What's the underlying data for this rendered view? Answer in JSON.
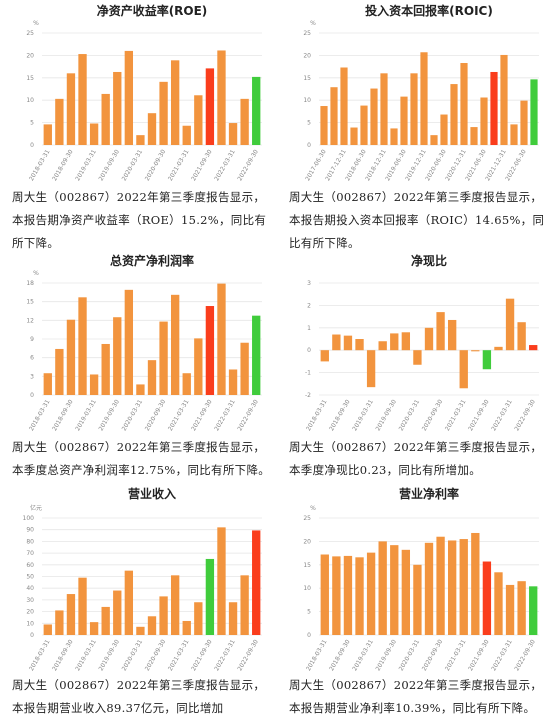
{
  "chart_data": [
    {
      "type": "bar",
      "title": "净资产收益率(ROE)",
      "unit": "%",
      "categories": [
        "2018-03-31",
        null,
        "2018-09-30",
        null,
        "2019-03-31",
        null,
        "2019-09-30",
        null,
        "2020-03-31",
        null,
        "2020-09-30",
        null,
        "2021-03-31",
        null,
        "2021-09-30",
        null,
        "2022-03-31",
        null,
        "2022-09-30"
      ],
      "values": [
        4.6,
        10.3,
        16,
        20.3,
        4.8,
        11.4,
        16.3,
        21,
        2.2,
        7.1,
        14.1,
        18.9,
        4.3,
        11.1,
        17.1,
        21.1,
        4.9,
        10.3,
        15.2
      ],
      "colors": [
        "#f2943e",
        "#f2943e",
        "#f2943e",
        "#f2943e",
        "#f2943e",
        "#f2943e",
        "#f2943e",
        "#f2943e",
        "#f2943e",
        "#f2943e",
        "#f2943e",
        "#f2943e",
        "#f2943e",
        "#f2943e",
        "#fa3d1c",
        "#f2943e",
        "#f2943e",
        "#f2943e",
        "#40cc3c"
      ],
      "ylim": [
        0,
        25
      ],
      "yticks": [
        0,
        5,
        10,
        15,
        20,
        25
      ],
      "grid": true,
      "caption": "周大生（002867）2022年第三季度报告显示，本报告期净资产收益率（ROE）15.2%，同比有所下降。"
    },
    {
      "type": "bar",
      "title": "投入资本回报率(ROIC)",
      "unit": "%",
      "categories": [
        "2017-06-30",
        null,
        "2017-12-31",
        null,
        "2018-06-30",
        null,
        "2018-12-31",
        null,
        "2019-06-30",
        null,
        "2019-12-31",
        null,
        "2020-06-30",
        null,
        "2020-12-31",
        null,
        "2021-06-30",
        null,
        "2021-12-31",
        null,
        "2022-06-30",
        null
      ],
      "values": [
        8.7,
        12.9,
        17.3,
        3.9,
        8.8,
        12.6,
        16,
        3.7,
        10.8,
        16,
        20.7,
        2.2,
        6.8,
        13.6,
        18.3,
        4,
        10.6,
        16.3,
        20.1,
        4.6,
        9.9,
        14.65
      ],
      "colors": [
        "#f2943e",
        "#f2943e",
        "#f2943e",
        "#f2943e",
        "#f2943e",
        "#f2943e",
        "#f2943e",
        "#f2943e",
        "#f2943e",
        "#f2943e",
        "#f2943e",
        "#f2943e",
        "#f2943e",
        "#f2943e",
        "#f2943e",
        "#f2943e",
        "#f2943e",
        "#fa3d1c",
        "#f2943e",
        "#f2943e",
        "#f2943e",
        "#40cc3c"
      ],
      "ylim": [
        0,
        25
      ],
      "yticks": [
        0,
        5,
        10,
        15,
        20,
        25
      ],
      "grid": true,
      "caption": "周大生（002867）2022年第三季度报告显示，本报告期投入资本回报率（ROIC）14.65%，同比有所下降。"
    },
    {
      "type": "bar",
      "title": "总资产净利润率",
      "unit": "%",
      "categories": [
        "2018-03-31",
        null,
        "2018-09-30",
        null,
        "2019-03-31",
        null,
        "2019-09-30",
        null,
        "2020-03-31",
        null,
        "2020-09-30",
        null,
        "2021-03-31",
        null,
        "2021-09-30",
        null,
        "2022-03-31",
        null,
        "2022-09-30"
      ],
      "values": [
        3.5,
        7.4,
        12.1,
        15.7,
        3.3,
        8.2,
        12.5,
        16.9,
        1.7,
        5.6,
        11.8,
        16.1,
        3.5,
        9.1,
        14.3,
        17.9,
        4.1,
        8.4,
        12.75
      ],
      "colors": [
        "#f2943e",
        "#f2943e",
        "#f2943e",
        "#f2943e",
        "#f2943e",
        "#f2943e",
        "#f2943e",
        "#f2943e",
        "#f2943e",
        "#f2943e",
        "#f2943e",
        "#f2943e",
        "#f2943e",
        "#f2943e",
        "#fa3d1c",
        "#f2943e",
        "#f2943e",
        "#f2943e",
        "#40cc3c"
      ],
      "ylim": [
        0,
        18
      ],
      "yticks": [
        0,
        3,
        6,
        9,
        12,
        15,
        18
      ],
      "grid": true,
      "caption": "周大生（002867）2022年第三季度报告显示，本季度总资产净利润率12.75%，同比有所下降。"
    },
    {
      "type": "bar",
      "title": "净现比",
      "categories": [
        "2018-03-31",
        null,
        "2018-09-30",
        null,
        "2019-03-31",
        null,
        "2019-09-30",
        null,
        "2020-03-31",
        null,
        "2020-09-30",
        null,
        "2021-03-31",
        null,
        "2021-09-30",
        null,
        "2022-03-31",
        null,
        "2022-09-30"
      ],
      "values": [
        -0.5,
        0.7,
        0.65,
        0.5,
        -1.65,
        0.4,
        0.75,
        0.8,
        -0.65,
        1.0,
        1.7,
        1.35,
        -1.7,
        -0.05,
        -0.85,
        0.15,
        2.3,
        1.25,
        0.23
      ],
      "colors": [
        "#f2943e",
        "#f2943e",
        "#f2943e",
        "#f2943e",
        "#f2943e",
        "#f2943e",
        "#f2943e",
        "#f2943e",
        "#f2943e",
        "#f2943e",
        "#f2943e",
        "#f2943e",
        "#f2943e",
        "#f2943e",
        "#40cc3c",
        "#f2943e",
        "#f2943e",
        "#f2943e",
        "#fa3d1c"
      ],
      "ylim": [
        -2,
        3
      ],
      "yticks": [
        -2,
        -1,
        0,
        1,
        2,
        3
      ],
      "grid": true,
      "caption": "周大生（002867）2022年第三季度报告显示，本季度净现比0.23，同比有所增加。"
    },
    {
      "type": "bar",
      "title": "营业收入",
      "unit": "亿元",
      "categories": [
        "2018-03-31",
        null,
        "2018-09-30",
        null,
        "2019-03-31",
        null,
        "2019-09-30",
        null,
        "2020-03-31",
        null,
        "2020-09-30",
        null,
        "2021-03-31",
        null,
        "2021-09-30",
        null,
        "2022-03-31",
        null,
        "2022-09-30"
      ],
      "values": [
        9,
        21,
        35,
        49,
        11,
        24,
        38,
        55,
        7,
        16,
        33,
        51,
        12,
        28,
        65,
        92,
        28,
        51,
        89.37
      ],
      "colors": [
        "#f2943e",
        "#f2943e",
        "#f2943e",
        "#f2943e",
        "#f2943e",
        "#f2943e",
        "#f2943e",
        "#f2943e",
        "#f2943e",
        "#f2943e",
        "#f2943e",
        "#f2943e",
        "#f2943e",
        "#f2943e",
        "#40cc3c",
        "#f2943e",
        "#f2943e",
        "#f2943e",
        "#fa3d1c"
      ],
      "ylim": [
        0,
        100
      ],
      "yticks": [
        0,
        10,
        20,
        30,
        40,
        50,
        60,
        70,
        80,
        90,
        100
      ],
      "grid": true,
      "caption": "周大生（002867）2022年第三季度报告显示，本报告期营业收入89.37亿元，同比增加38.05%。"
    },
    {
      "type": "bar",
      "title": "营业净利率",
      "unit": "%",
      "categories": [
        "2018-03-31",
        null,
        "2018-09-30",
        null,
        "2019-03-31",
        null,
        "2019-09-30",
        null,
        "2020-03-31",
        null,
        "2020-09-30",
        null,
        "2021-03-31",
        null,
        "2021-09-30",
        null,
        "2022-03-31",
        null,
        "2022-09-30"
      ],
      "values": [
        17.2,
        16.8,
        16.9,
        16.6,
        17.6,
        20,
        19.2,
        18.2,
        15,
        19.7,
        21,
        20.2,
        20.5,
        21.8,
        15.7,
        13.4,
        10.7,
        11.5,
        10.4
      ],
      "colors": [
        "#f2943e",
        "#f2943e",
        "#f2943e",
        "#f2943e",
        "#f2943e",
        "#f2943e",
        "#f2943e",
        "#f2943e",
        "#f2943e",
        "#f2943e",
        "#f2943e",
        "#f2943e",
        "#f2943e",
        "#f2943e",
        "#fa3d1c",
        "#f2943e",
        "#f2943e",
        "#f2943e",
        "#40cc3c"
      ],
      "ylim": [
        0,
        25
      ],
      "yticks": [
        0,
        5,
        10,
        15,
        20,
        25
      ],
      "grid": true,
      "caption": "周大生（002867）2022年第三季度报告显示，本报告期营业净利率10.39%，同比有所下降。"
    }
  ]
}
